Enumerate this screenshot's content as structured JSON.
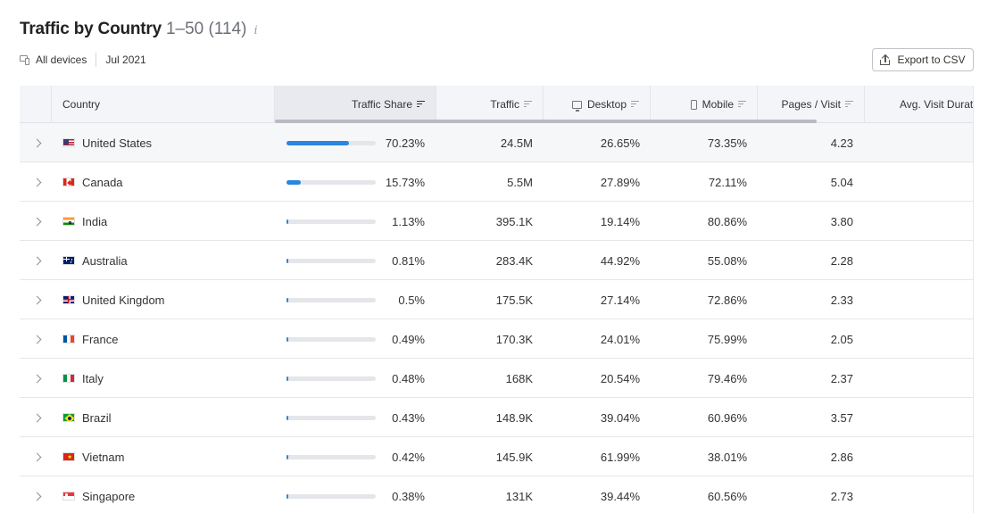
{
  "header": {
    "title": "Traffic by Country",
    "range": "1–50 (114)",
    "info_glyph": "i"
  },
  "filters": {
    "devices": "All devices",
    "date": "Jul 2021"
  },
  "export": {
    "label": "Export to CSV"
  },
  "table": {
    "columns": {
      "country": "Country",
      "traffic_share": "Traffic Share",
      "traffic": "Traffic",
      "desktop": "Desktop",
      "mobile": "Mobile",
      "pages_visit": "Pages / Visit",
      "avg_visit": "Avg. Visit Durat"
    },
    "rows": [
      {
        "country": "United States",
        "flag": "us",
        "share": "70.23%",
        "share_value": 70.23,
        "traffic": "24.5M",
        "desktop": "26.65%",
        "mobile": "73.35%",
        "pages": "4.23"
      },
      {
        "country": "Canada",
        "flag": "ca",
        "share": "15.73%",
        "share_value": 15.73,
        "traffic": "5.5M",
        "desktop": "27.89%",
        "mobile": "72.11%",
        "pages": "5.04"
      },
      {
        "country": "India",
        "flag": "in",
        "share": "1.13%",
        "share_value": 1.13,
        "traffic": "395.1K",
        "desktop": "19.14%",
        "mobile": "80.86%",
        "pages": "3.80"
      },
      {
        "country": "Australia",
        "flag": "au",
        "share": "0.81%",
        "share_value": 0.81,
        "traffic": "283.4K",
        "desktop": "44.92%",
        "mobile": "55.08%",
        "pages": "2.28"
      },
      {
        "country": "United Kingdom",
        "flag": "gb",
        "share": "0.5%",
        "share_value": 0.5,
        "traffic": "175.5K",
        "desktop": "27.14%",
        "mobile": "72.86%",
        "pages": "2.33"
      },
      {
        "country": "France",
        "flag": "fr",
        "share": "0.49%",
        "share_value": 0.49,
        "traffic": "170.3K",
        "desktop": "24.01%",
        "mobile": "75.99%",
        "pages": "2.05"
      },
      {
        "country": "Italy",
        "flag": "it",
        "share": "0.48%",
        "share_value": 0.48,
        "traffic": "168K",
        "desktop": "20.54%",
        "mobile": "79.46%",
        "pages": "2.37"
      },
      {
        "country": "Brazil",
        "flag": "br",
        "share": "0.43%",
        "share_value": 0.43,
        "traffic": "148.9K",
        "desktop": "39.04%",
        "mobile": "60.96%",
        "pages": "3.57"
      },
      {
        "country": "Vietnam",
        "flag": "vn",
        "share": "0.42%",
        "share_value": 0.42,
        "traffic": "145.9K",
        "desktop": "61.99%",
        "mobile": "38.01%",
        "pages": "2.86"
      },
      {
        "country": "Singapore",
        "flag": "sg",
        "share": "0.38%",
        "share_value": 0.38,
        "traffic": "131K",
        "desktop": "39.44%",
        "mobile": "60.56%",
        "pages": "2.73"
      }
    ]
  },
  "colors": {
    "bar_fill": "#2a86e0",
    "bar_track": "#e5e6ea",
    "header_bg": "#f4f5f9"
  }
}
